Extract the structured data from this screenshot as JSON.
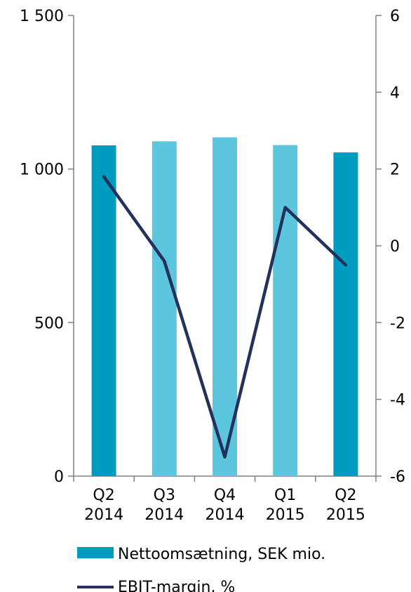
{
  "chart_data": {
    "type": "bar",
    "categories": [
      [
        "Q2",
        "2014"
      ],
      [
        "Q3",
        "2014"
      ],
      [
        "Q4",
        "2014"
      ],
      [
        "Q1",
        "2015"
      ],
      [
        "Q2",
        "2015"
      ]
    ],
    "series": [
      {
        "name": "Nettoomsætning, SEK mio.",
        "type": "bar",
        "axis": "left",
        "values": [
          1077,
          1090,
          1103,
          1078,
          1054
        ],
        "colors": [
          "#009cbf",
          "#5bc6dd",
          "#5bc6dd",
          "#5bc6dd",
          "#009cbf"
        ]
      },
      {
        "name": "EBIT-margin, %",
        "type": "line",
        "axis": "right",
        "values": [
          1.8,
          -0.4,
          -5.5,
          1.0,
          -0.5
        ],
        "color": "#22325c"
      }
    ],
    "y_left": {
      "min": 0,
      "max": 1500,
      "ticks": [
        0,
        500,
        1000,
        1500
      ],
      "tick_labels": [
        "0",
        "500",
        "1 000",
        "1 500"
      ]
    },
    "y_right": {
      "min": -6,
      "max": 6,
      "ticks": [
        -6,
        -4,
        -2,
        0,
        2,
        4,
        6
      ],
      "tick_labels": [
        "-6",
        "-4",
        "-2",
        "0",
        "2",
        "4",
        "6"
      ]
    },
    "grid": false,
    "legend_position": "bottom"
  }
}
